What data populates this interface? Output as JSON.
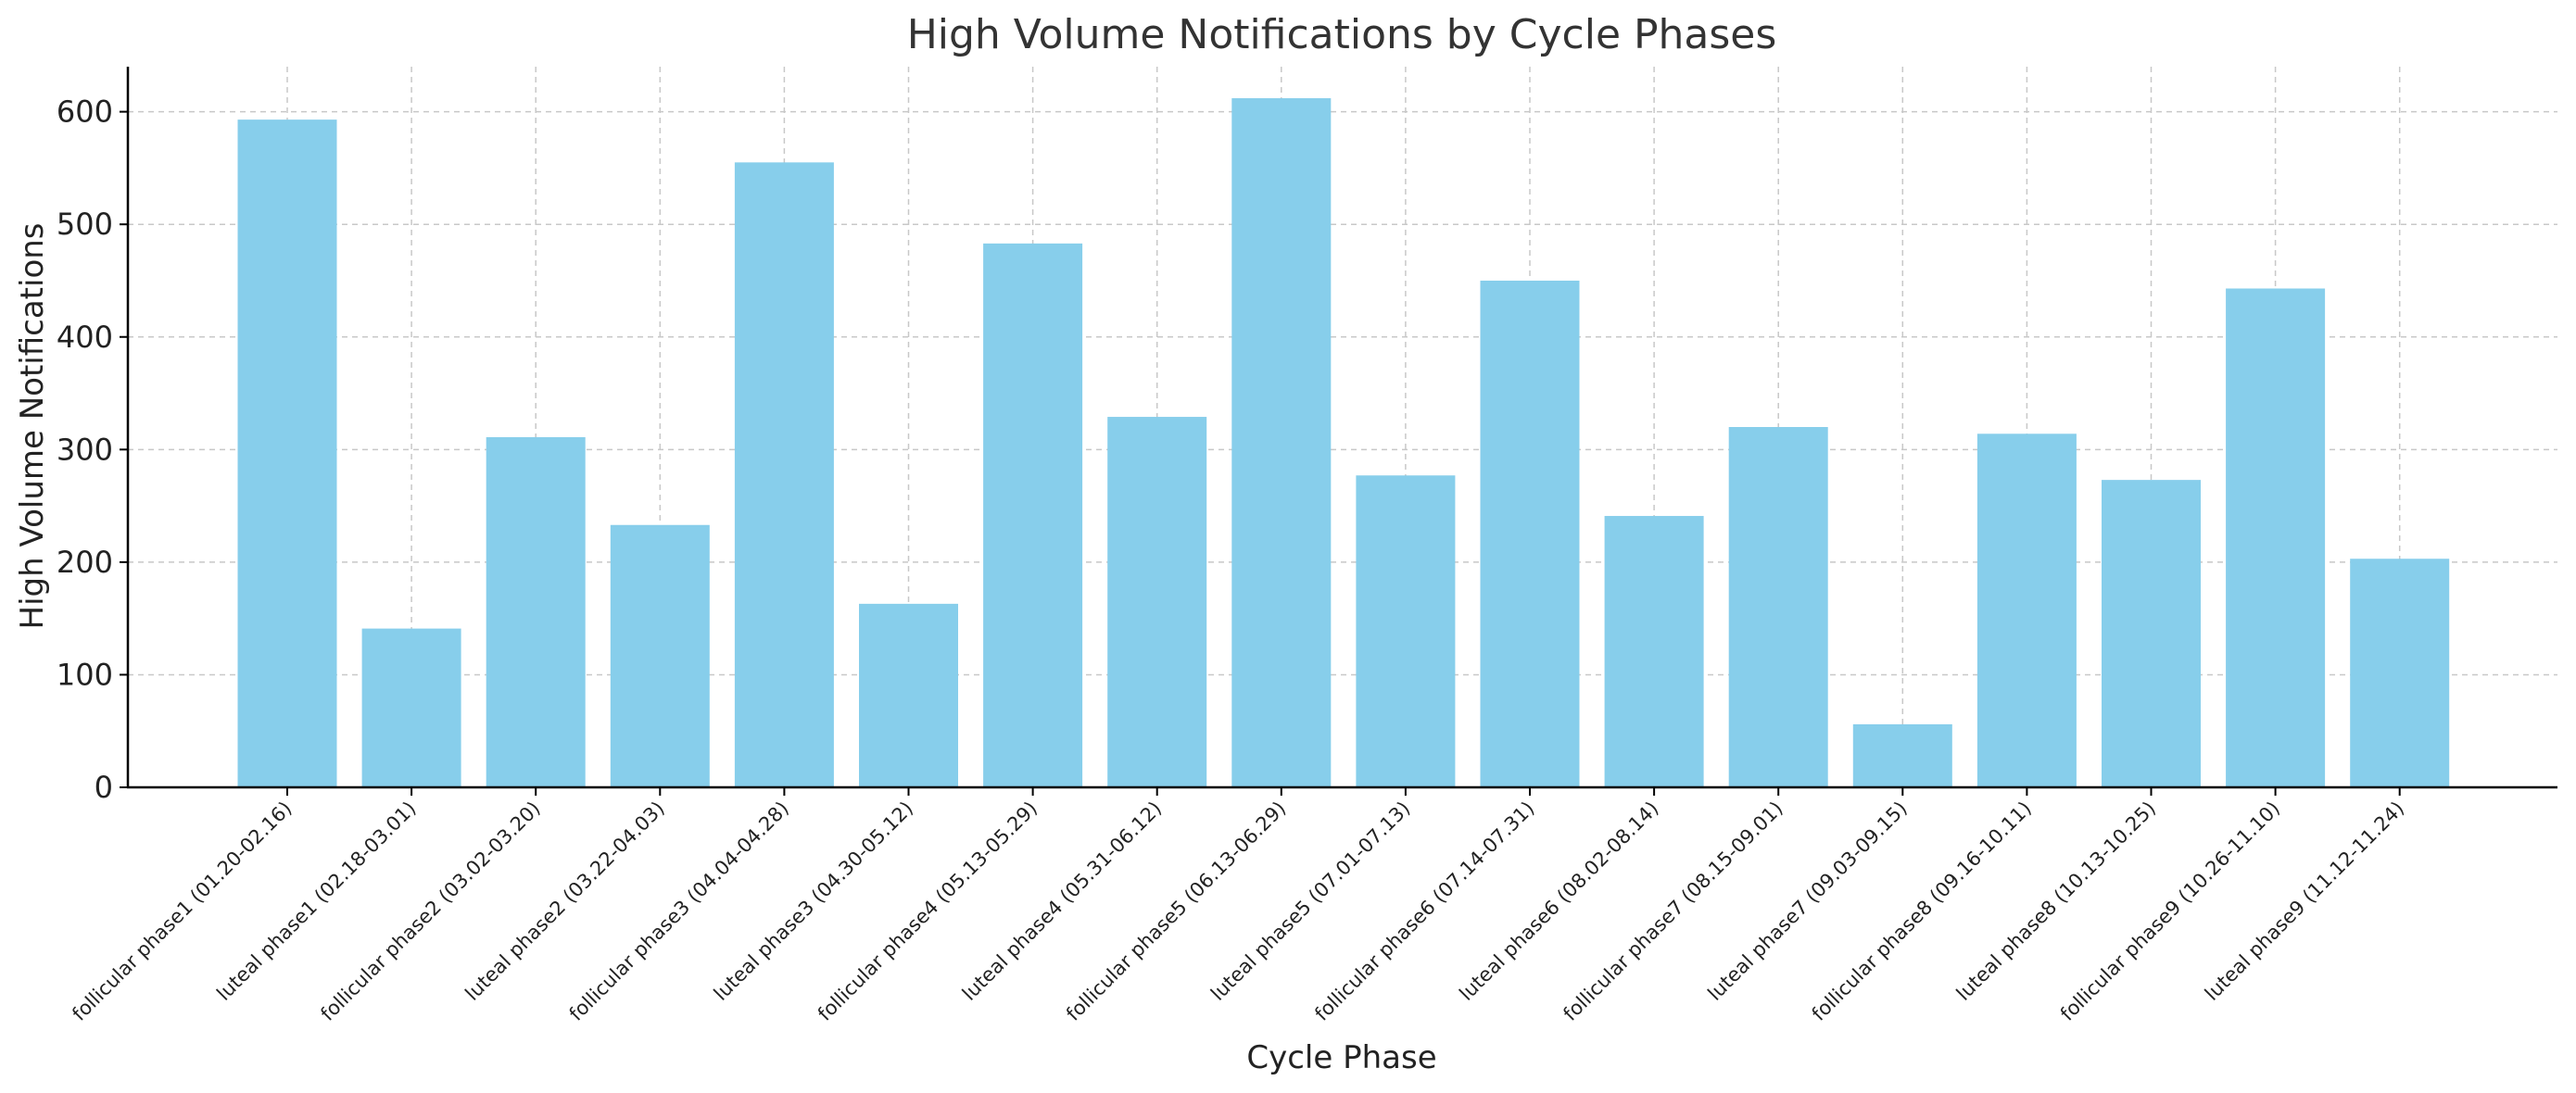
{
  "chart_data": {
    "type": "bar",
    "title": "High Volume Notifications by Cycle Phases",
    "xlabel": "Cycle Phase",
    "ylabel": "High Volume Notifications",
    "ylim": [
      0,
      640
    ],
    "yticks": [
      0,
      100,
      200,
      300,
      400,
      500,
      600
    ],
    "grid": true,
    "bar_color": "#87CEEB",
    "categories": [
      "follicular phase1 (01.20-02.16)",
      "luteal phase1 (02.18-03.01)",
      "follicular phase2 (03.02-03.20)",
      "luteal phase2 (03.22-04.03)",
      "follicular phase3 (04.04-04.28)",
      "luteal phase3 (04.30-05.12)",
      "follicular phase4 (05.13-05.29)",
      "luteal phase4 (05.31-06.12)",
      "follicular phase5 (06.13-06.29)",
      "luteal phase5 (07.01-07.13)",
      "follicular phase6 (07.14-07.31)",
      "luteal phase6 (08.02-08.14)",
      "follicular phase7 (08.15-09.01)",
      "luteal phase7 (09.03-09.15)",
      "follicular phase8 (09.16-10.11)",
      "luteal phase8 (10.13-10.25)",
      "follicular phase9 (10.26-11.10)",
      "luteal phase9 (11.12-11.24)"
    ],
    "values": [
      593,
      141,
      311,
      233,
      555,
      163,
      483,
      329,
      612,
      277,
      450,
      241,
      320,
      56,
      314,
      273,
      443,
      203
    ]
  }
}
